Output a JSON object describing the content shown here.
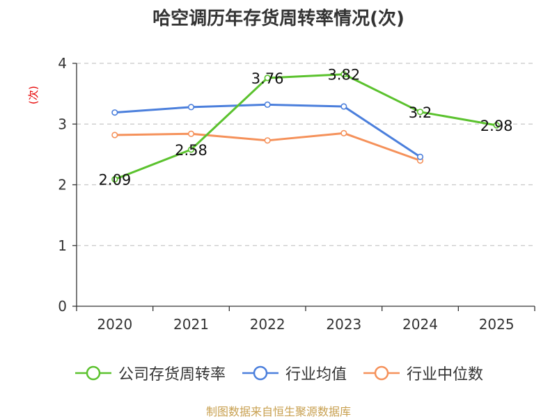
{
  "chart_data": {
    "type": "line",
    "title": "哈空调历年存货周转率情况(次)",
    "ylabel": "(次)",
    "xlabel": "",
    "categories": [
      "2020",
      "2021",
      "2022",
      "2023",
      "2024",
      "2025"
    ],
    "ylim": [
      0,
      4
    ],
    "yticks": [
      0,
      1,
      2,
      3,
      4
    ],
    "grid": true,
    "legend_position": "bottom",
    "series": [
      {
        "name": "公司存货周转率",
        "color": "#5bc22e",
        "values": [
          2.09,
          2.58,
          3.76,
          3.82,
          3.2,
          2.98
        ],
        "labels": [
          "2.09",
          "2.58",
          "3.76",
          "3.82",
          "3.2",
          "2.98"
        ],
        "show_labels": true
      },
      {
        "name": "行业均值",
        "color": "#4b7fdc",
        "values": [
          3.19,
          3.28,
          3.32,
          3.29,
          2.46,
          null
        ],
        "show_labels": false
      },
      {
        "name": "行业中位数",
        "color": "#f5915a",
        "values": [
          2.82,
          2.84,
          2.73,
          2.85,
          2.4,
          null
        ],
        "show_labels": false
      }
    ],
    "source": "制图数据来自恒生聚源数据库"
  }
}
